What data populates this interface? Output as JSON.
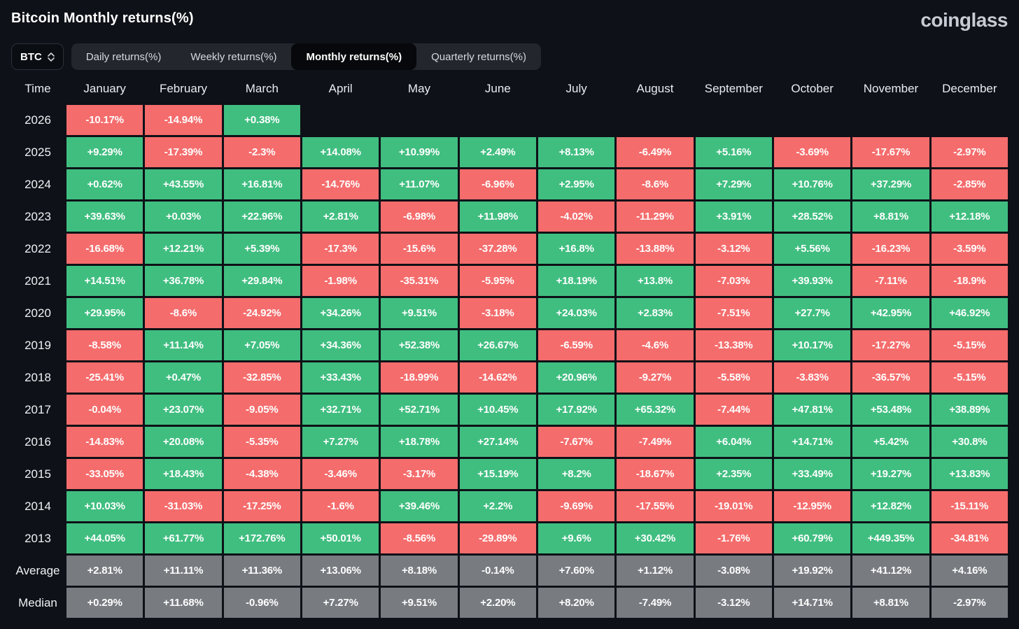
{
  "page": {
    "title": "Bitcoin Monthly returns(%)",
    "brand": "coinglass"
  },
  "controls": {
    "coin_selector": {
      "label": "BTC"
    },
    "tabs": [
      {
        "label": "Daily returns(%)",
        "active": false
      },
      {
        "label": "Weekly returns(%)",
        "active": false
      },
      {
        "label": "Monthly returns(%)",
        "active": true
      },
      {
        "label": "Quarterly returns(%)",
        "active": false
      }
    ]
  },
  "colors": {
    "background": "#0e1117",
    "positive": "#40be80",
    "negative": "#f56c6c",
    "neutral": "#787b80"
  },
  "chart_data": {
    "type": "heatmap",
    "title": "Bitcoin Monthly returns(%)",
    "unit": "%",
    "col_header": "Time",
    "columns": [
      "January",
      "February",
      "March",
      "April",
      "May",
      "June",
      "July",
      "August",
      "September",
      "October",
      "November",
      "December"
    ],
    "rows": [
      {
        "label": "2026",
        "neutral": false,
        "values": [
          "-10.17%",
          "-14.94%",
          "+0.38%",
          "",
          "",
          "",
          "",
          "",
          "",
          "",
          "",
          ""
        ]
      },
      {
        "label": "2025",
        "neutral": false,
        "values": [
          "+9.29%",
          "-17.39%",
          "-2.3%",
          "+14.08%",
          "+10.99%",
          "+2.49%",
          "+8.13%",
          "-6.49%",
          "+5.16%",
          "-3.69%",
          "-17.67%",
          "-2.97%"
        ]
      },
      {
        "label": "2024",
        "neutral": false,
        "values": [
          "+0.62%",
          "+43.55%",
          "+16.81%",
          "-14.76%",
          "+11.07%",
          "-6.96%",
          "+2.95%",
          "-8.6%",
          "+7.29%",
          "+10.76%",
          "+37.29%",
          "-2.85%"
        ]
      },
      {
        "label": "2023",
        "neutral": false,
        "values": [
          "+39.63%",
          "+0.03%",
          "+22.96%",
          "+2.81%",
          "-6.98%",
          "+11.98%",
          "-4.02%",
          "-11.29%",
          "+3.91%",
          "+28.52%",
          "+8.81%",
          "+12.18%"
        ]
      },
      {
        "label": "2022",
        "neutral": false,
        "values": [
          "-16.68%",
          "+12.21%",
          "+5.39%",
          "-17.3%",
          "-15.6%",
          "-37.28%",
          "+16.8%",
          "-13.88%",
          "-3.12%",
          "+5.56%",
          "-16.23%",
          "-3.59%"
        ]
      },
      {
        "label": "2021",
        "neutral": false,
        "values": [
          "+14.51%",
          "+36.78%",
          "+29.84%",
          "-1.98%",
          "-35.31%",
          "-5.95%",
          "+18.19%",
          "+13.8%",
          "-7.03%",
          "+39.93%",
          "-7.11%",
          "-18.9%"
        ]
      },
      {
        "label": "2020",
        "neutral": false,
        "values": [
          "+29.95%",
          "-8.6%",
          "-24.92%",
          "+34.26%",
          "+9.51%",
          "-3.18%",
          "+24.03%",
          "+2.83%",
          "-7.51%",
          "+27.7%",
          "+42.95%",
          "+46.92%"
        ]
      },
      {
        "label": "2019",
        "neutral": false,
        "values": [
          "-8.58%",
          "+11.14%",
          "+7.05%",
          "+34.36%",
          "+52.38%",
          "+26.67%",
          "-6.59%",
          "-4.6%",
          "-13.38%",
          "+10.17%",
          "-17.27%",
          "-5.15%"
        ]
      },
      {
        "label": "2018",
        "neutral": false,
        "values": [
          "-25.41%",
          "+0.47%",
          "-32.85%",
          "+33.43%",
          "-18.99%",
          "-14.62%",
          "+20.96%",
          "-9.27%",
          "-5.58%",
          "-3.83%",
          "-36.57%",
          "-5.15%"
        ]
      },
      {
        "label": "2017",
        "neutral": false,
        "values": [
          "-0.04%",
          "+23.07%",
          "-9.05%",
          "+32.71%",
          "+52.71%",
          "+10.45%",
          "+17.92%",
          "+65.32%",
          "-7.44%",
          "+47.81%",
          "+53.48%",
          "+38.89%"
        ]
      },
      {
        "label": "2016",
        "neutral": false,
        "values": [
          "-14.83%",
          "+20.08%",
          "-5.35%",
          "+7.27%",
          "+18.78%",
          "+27.14%",
          "-7.67%",
          "-7.49%",
          "+6.04%",
          "+14.71%",
          "+5.42%",
          "+30.8%"
        ]
      },
      {
        "label": "2015",
        "neutral": false,
        "values": [
          "-33.05%",
          "+18.43%",
          "-4.38%",
          "-3.46%",
          "-3.17%",
          "+15.19%",
          "+8.2%",
          "-18.67%",
          "+2.35%",
          "+33.49%",
          "+19.27%",
          "+13.83%"
        ]
      },
      {
        "label": "2014",
        "neutral": false,
        "values": [
          "+10.03%",
          "-31.03%",
          "-17.25%",
          "-1.6%",
          "+39.46%",
          "+2.2%",
          "-9.69%",
          "-17.55%",
          "-19.01%",
          "-12.95%",
          "+12.82%",
          "-15.11%"
        ]
      },
      {
        "label": "2013",
        "neutral": false,
        "values": [
          "+44.05%",
          "+61.77%",
          "+172.76%",
          "+50.01%",
          "-8.56%",
          "-29.89%",
          "+9.6%",
          "+30.42%",
          "-1.76%",
          "+60.79%",
          "+449.35%",
          "-34.81%"
        ]
      },
      {
        "label": "Average",
        "neutral": true,
        "values": [
          "+2.81%",
          "+11.11%",
          "+11.36%",
          "+13.06%",
          "+8.18%",
          "-0.14%",
          "+7.60%",
          "+1.12%",
          "-3.08%",
          "+19.92%",
          "+41.12%",
          "+4.16%"
        ]
      },
      {
        "label": "Median",
        "neutral": true,
        "values": [
          "+0.29%",
          "+11.68%",
          "-0.96%",
          "+7.27%",
          "+9.51%",
          "+2.20%",
          "+8.20%",
          "-7.49%",
          "-3.12%",
          "+14.71%",
          "+8.81%",
          "-2.97%"
        ]
      }
    ]
  }
}
